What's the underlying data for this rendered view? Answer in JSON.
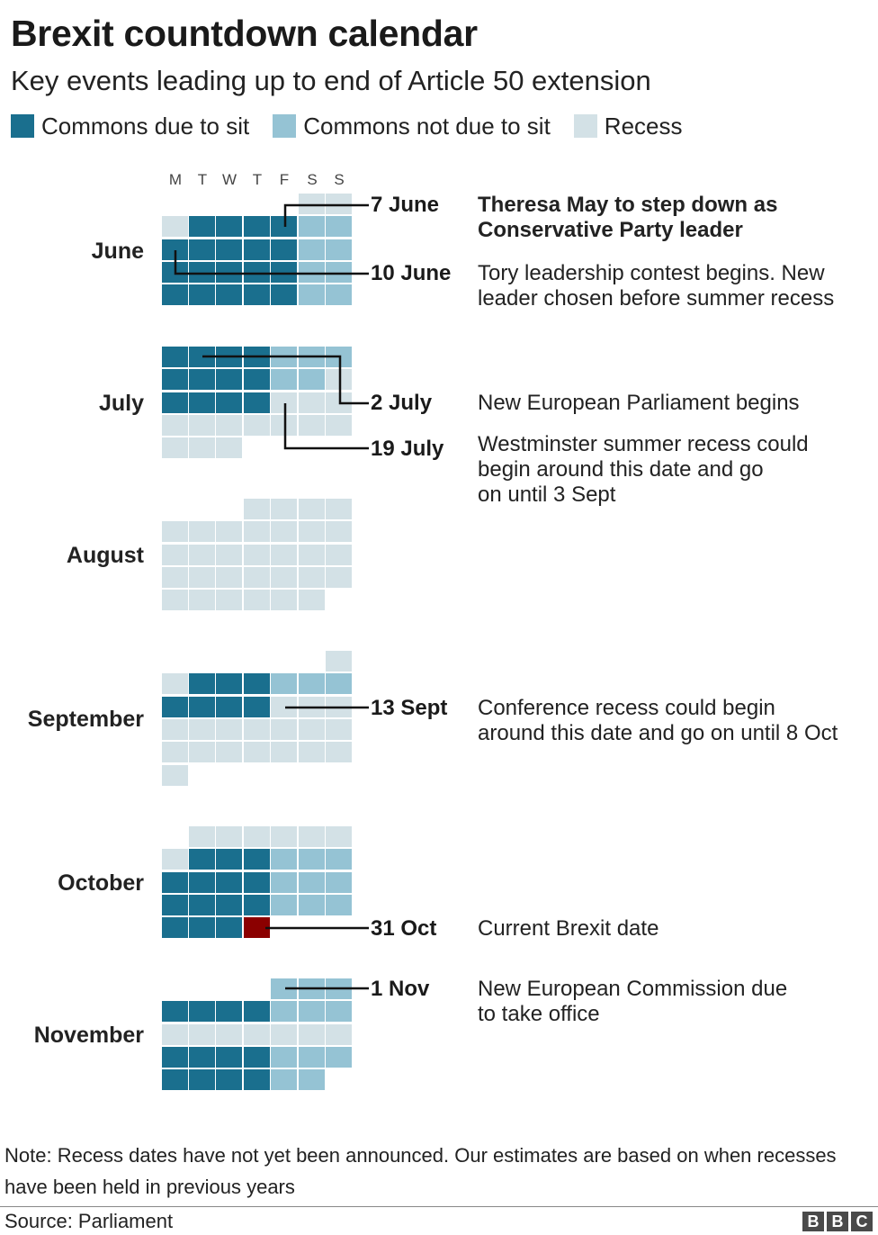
{
  "title": "Brexit countdown calendar",
  "subtitle": "Key events leading up to end of Article 50 extension",
  "colors": {
    "sit": "#1a6f8e",
    "not_sit": "#95c3d4",
    "recess": "#d3e1e6",
    "brexit": "#8b0000"
  },
  "legend": [
    {
      "key": "sit",
      "label": "Commons due to sit"
    },
    {
      "key": "not_sit",
      "label": "Commons not due to sit"
    },
    {
      "key": "recess",
      "label": "Recess"
    }
  ],
  "weekdays": [
    "M",
    "T",
    "W",
    "T",
    "F",
    "S",
    "S"
  ],
  "months": [
    {
      "name": "June",
      "rows": [
        "-----rr",
        "rsssSnn",
        "sssssnn",
        "sssssnn",
        "sssssnn"
      ]
    },
    {
      "name": "July",
      "rows": [
        "ssssnnn",
        "ssssnnr",
        "ssssrrr",
        "rrrrrrr",
        "rrr----"
      ]
    },
    {
      "name": "August",
      "rows": [
        "---rrrr",
        "rrrrrrr",
        "rrrrrrr",
        "rrrrrrr",
        "rrrrrr-"
      ]
    },
    {
      "name": "September",
      "rows": [
        "------r",
        "rsssnnn",
        "ssssrrr",
        "rrrrrrr",
        "rrrrrrr",
        "r------"
      ]
    },
    {
      "name": "October",
      "rows": [
        "-rrrrrr",
        "rsssnnn",
        "ssssnnn",
        "ssssnnn",
        "sssX---"
      ]
    },
    {
      "name": "November",
      "rows": [
        "----nnn",
        "ssssnnn",
        "rrrrrrr",
        "ssssnnn",
        "ssssnn-"
      ]
    }
  ],
  "callouts": [
    {
      "date": "7 June",
      "text": "Theresa May to step down as\nConservative Party leader",
      "bold": true
    },
    {
      "date": "10 June",
      "text": "Tory leadership contest begins. New\nleader chosen before summer recess",
      "bold": false
    },
    {
      "date": "2 July",
      "text": "New European Parliament begins",
      "bold": false
    },
    {
      "date": "19 July",
      "text": "Westminster summer recess could\nbegin around this date and go\non until 3 Sept",
      "bold": false
    },
    {
      "date": "13 Sept",
      "text": "Conference recess could begin\naround this date and go on until 8 Oct",
      "bold": false
    },
    {
      "date": "31 Oct",
      "text": "Current Brexit date",
      "bold": false
    },
    {
      "date": "1 Nov",
      "text": "New European Commission due\nto take office",
      "bold": false
    }
  ],
  "note": "Note: Recess dates have not yet been announced. Our estimates are based on when recesses have been held in previous years",
  "source": "Source: Parliament",
  "logo": [
    "B",
    "B",
    "C"
  ]
}
